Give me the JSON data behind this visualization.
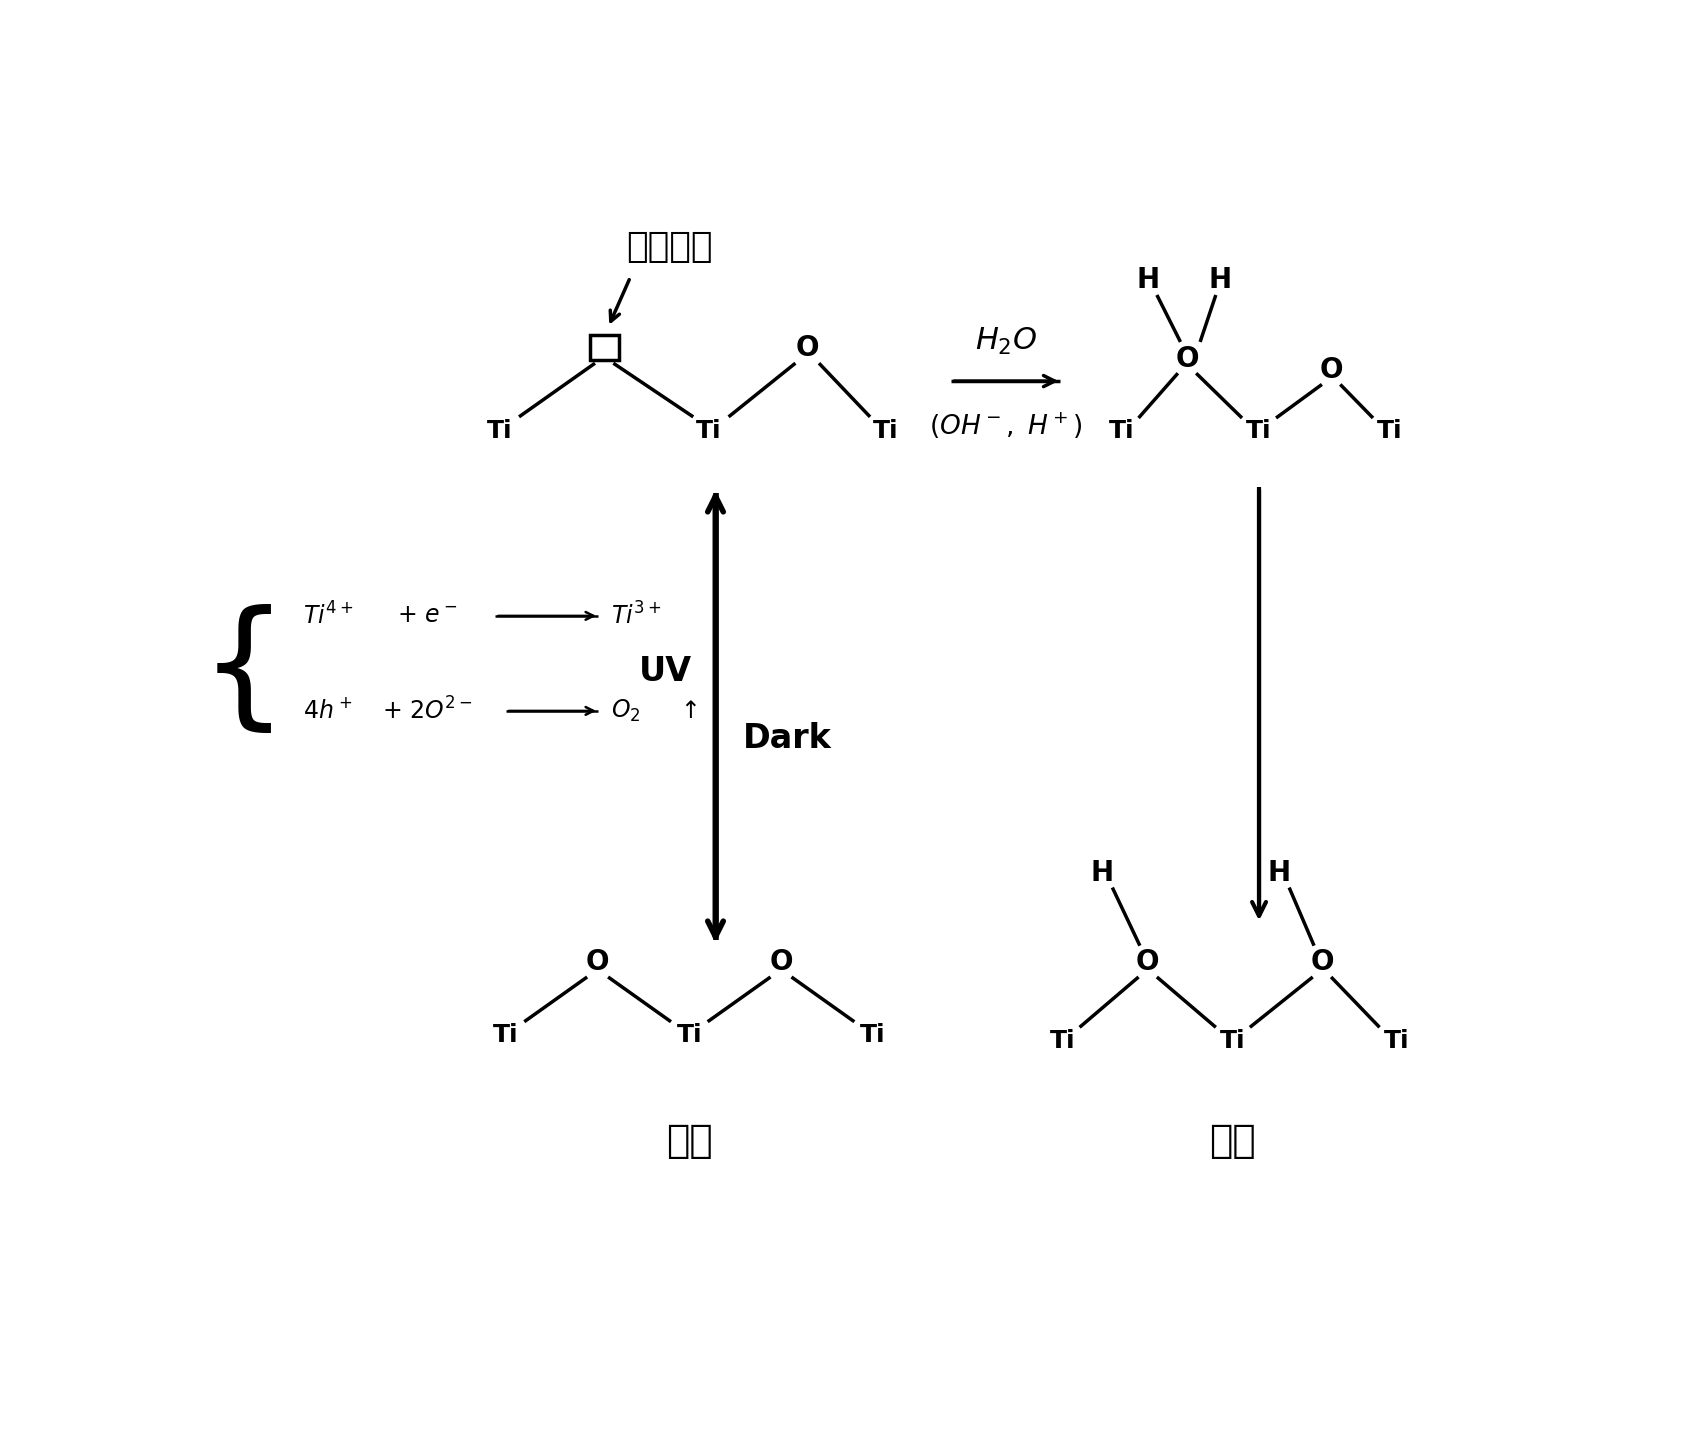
{
  "bg_color": "#ffffff",
  "fig_width": 16.9,
  "fig_height": 14.52,
  "korean_label_top": "산소결함",
  "hydrophobic_label": "발수",
  "hydrophilic_label": "친수",
  "uv_label": "UV",
  "dark_label": "Dark"
}
